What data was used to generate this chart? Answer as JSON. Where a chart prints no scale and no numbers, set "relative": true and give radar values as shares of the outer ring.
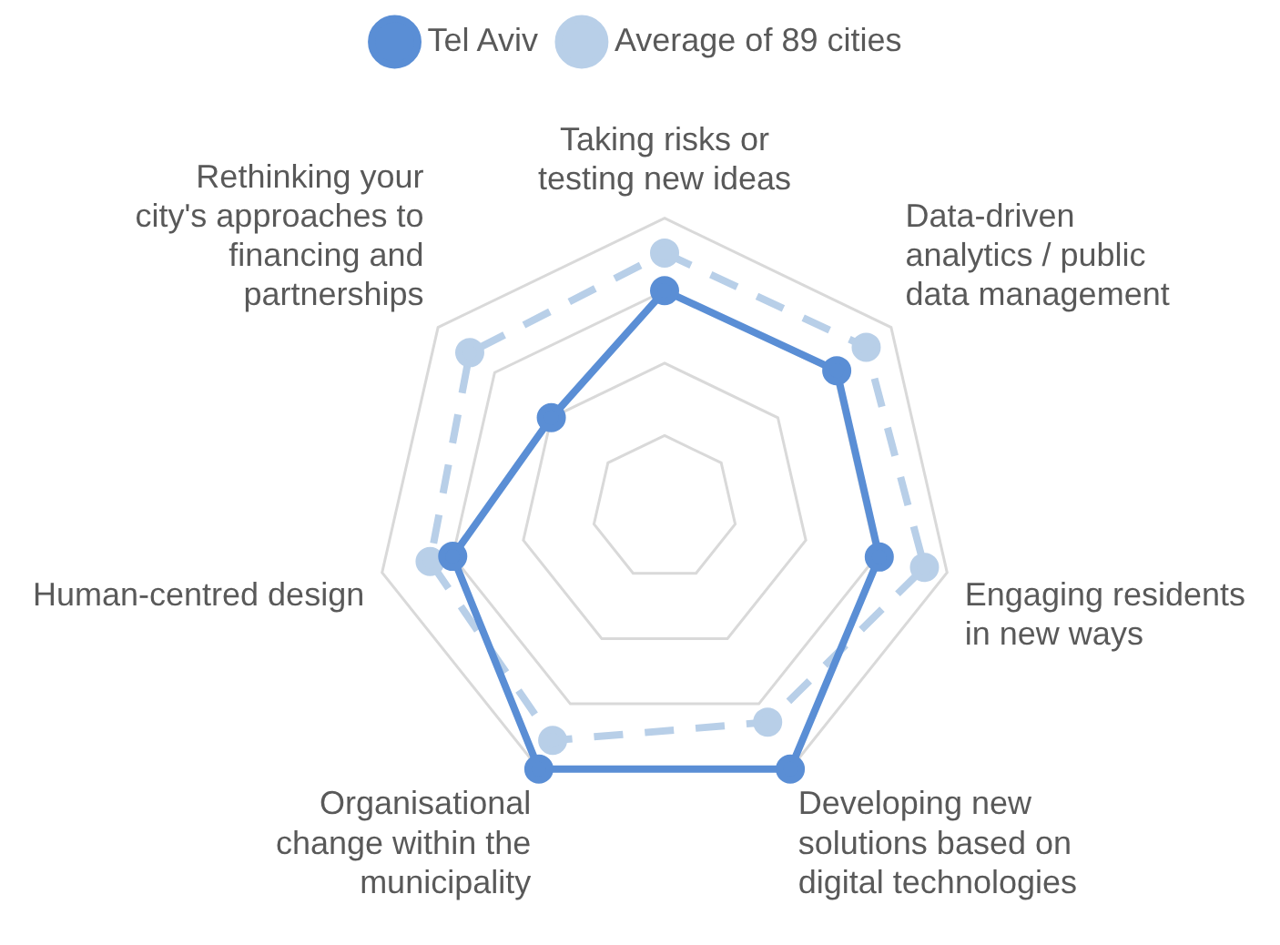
{
  "chart_data": {
    "type": "radar",
    "relative": true,
    "categories": [
      "Taking risks or testing new ideas",
      "Data-driven analytics / public data management",
      "Engaging residents in new ways",
      "Developing new solutions based on digital technologies",
      "Organisational change within the municipality",
      "Human-centred design",
      "Rethinking your city's approaches to financing and partnerships"
    ],
    "series": [
      {
        "name": "Tel Aviv",
        "color": "#5a8ed5",
        "line_style": "solid",
        "values": [
          0.75,
          0.76,
          0.76,
          1.0,
          1.0,
          0.75,
          0.5
        ]
      },
      {
        "name": "Average of 89 cities",
        "color": "#b8cfe8",
        "line_style": "dashed",
        "values": [
          0.88,
          0.89,
          0.92,
          0.82,
          0.89,
          0.83,
          0.86
        ]
      }
    ],
    "grid": true,
    "legend": "top",
    "marker": "circle"
  }
}
